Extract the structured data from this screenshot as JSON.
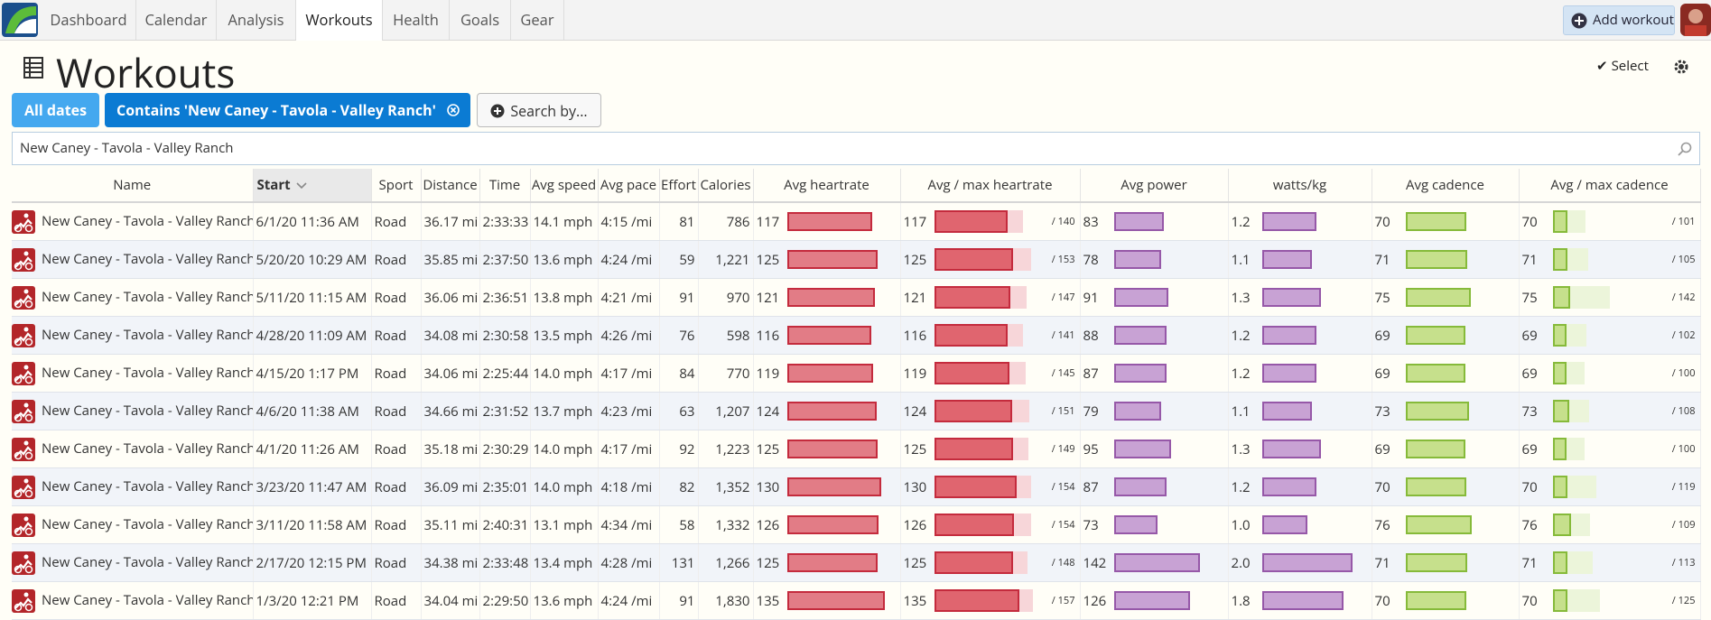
{
  "nav": {
    "tabs": [
      "Dashboard",
      "Calendar",
      "Analysis",
      "Workouts",
      "Health",
      "Goals",
      "Gear"
    ],
    "add_workout": "Add workout"
  },
  "header": {
    "title": "Workouts",
    "select": "Select"
  },
  "filters": {
    "all_dates": "All dates",
    "contains": "Contains 'New Caney - Tavola - Valley Ranch'",
    "search_by": "Search by..."
  },
  "search": {
    "value": "New Caney - Tavola - Valley Ranch"
  },
  "table": {
    "columns": [
      "Name",
      "Start",
      "Sport",
      "Distance",
      "Time",
      "Avg speed",
      "Avg pace",
      "Effort",
      "Calories",
      "Avg heartrate",
      "Avg / max heartrate",
      "Avg power",
      "watts/kg",
      "Avg cadence",
      "Avg / max cadence"
    ],
    "rows": [
      {
        "name": "New Caney - Tavola - Valley Ranch",
        "start": "6/1/20 11:36 AM",
        "sport": "Road",
        "distance": "36.17 mi",
        "time": "2:33:33",
        "avg_speed": "14.1 mph",
        "avg_pace": "4:15 /mi",
        "effort": 81,
        "calories": "786",
        "avg_hr": 117,
        "max_hr": {
          "value": 140,
          "label": "/ 140"
        },
        "avg_power": 83,
        "wkg": 1.2,
        "avg_cadence": 70,
        "max_cadence": {
          "value": 101,
          "label": "/ 101"
        }
      },
      {
        "name": "New Caney - Tavola - Valley Ranch",
        "start": "5/20/20 10:29 AM",
        "sport": "Road",
        "distance": "35.85 mi",
        "time": "2:37:50",
        "avg_speed": "13.6 mph",
        "avg_pace": "4:24 /mi",
        "effort": 59,
        "calories": "1,221",
        "avg_hr": 125,
        "max_hr": {
          "value": 153,
          "label": "/ 153"
        },
        "avg_power": 78,
        "wkg": 1.1,
        "avg_cadence": 71,
        "max_cadence": {
          "value": 105,
          "label": "/ 105"
        }
      },
      {
        "name": "New Caney - Tavola - Valley Ranch",
        "start": "5/11/20 11:15 AM",
        "sport": "Road",
        "distance": "36.06 mi",
        "time": "2:36:51",
        "avg_speed": "13.8 mph",
        "avg_pace": "4:21 /mi",
        "effort": 91,
        "calories": "970",
        "avg_hr": 121,
        "max_hr": {
          "value": 147,
          "label": "/ 147"
        },
        "avg_power": 91,
        "wkg": 1.3,
        "avg_cadence": 75,
        "max_cadence": {
          "value": 142,
          "label": "/ 142"
        }
      },
      {
        "name": "New Caney - Tavola - Valley Ranch",
        "start": "4/28/20 11:09 AM",
        "sport": "Road",
        "distance": "34.08 mi",
        "time": "2:30:58",
        "avg_speed": "13.5 mph",
        "avg_pace": "4:26 /mi",
        "effort": 76,
        "calories": "598",
        "avg_hr": 116,
        "max_hr": {
          "value": 141,
          "label": "/ 141"
        },
        "avg_power": 88,
        "wkg": 1.2,
        "avg_cadence": 69,
        "max_cadence": {
          "value": 102,
          "label": "/ 102"
        }
      },
      {
        "name": "New Caney - Tavola - Valley Ranch",
        "start": "4/15/20 1:17 PM",
        "sport": "Road",
        "distance": "34.06 mi",
        "time": "2:25:44",
        "avg_speed": "14.0 mph",
        "avg_pace": "4:17 /mi",
        "effort": 84,
        "calories": "770",
        "avg_hr": 119,
        "max_hr": {
          "value": 145,
          "label": "/ 145"
        },
        "avg_power": 87,
        "wkg": 1.2,
        "avg_cadence": 69,
        "max_cadence": {
          "value": 100,
          "label": "/ 100"
        }
      },
      {
        "name": "New Caney - Tavola - Valley Ranch",
        "start": "4/6/20 11:38 AM",
        "sport": "Road",
        "distance": "34.66 mi",
        "time": "2:31:52",
        "avg_speed": "13.7 mph",
        "avg_pace": "4:23 /mi",
        "effort": 63,
        "calories": "1,207",
        "avg_hr": 124,
        "max_hr": {
          "value": 151,
          "label": "/ 151"
        },
        "avg_power": 79,
        "wkg": 1.1,
        "avg_cadence": 73,
        "max_cadence": {
          "value": 108,
          "label": "/ 108"
        }
      },
      {
        "name": "New Caney - Tavola - Valley Ranch",
        "start": "4/1/20 11:26 AM",
        "sport": "Road",
        "distance": "35.18 mi",
        "time": "2:30:29",
        "avg_speed": "14.0 mph",
        "avg_pace": "4:17 /mi",
        "effort": 92,
        "calories": "1,223",
        "avg_hr": 125,
        "max_hr": {
          "value": 149,
          "label": "/ 149"
        },
        "avg_power": 95,
        "wkg": 1.3,
        "avg_cadence": 69,
        "max_cadence": {
          "value": 100,
          "label": "/ 100"
        }
      },
      {
        "name": "New Caney - Tavola - Valley Ranch",
        "start": "3/23/20 11:47 AM",
        "sport": "Road",
        "distance": "36.09 mi",
        "time": "2:35:01",
        "avg_speed": "14.0 mph",
        "avg_pace": "4:18 /mi",
        "effort": 82,
        "calories": "1,352",
        "avg_hr": 130,
        "max_hr": {
          "value": 154,
          "label": "/ 154"
        },
        "avg_power": 87,
        "wkg": 1.2,
        "avg_cadence": 70,
        "max_cadence": {
          "value": 119,
          "label": "/ 119"
        }
      },
      {
        "name": "New Caney - Tavola - Valley Ranch",
        "start": "3/11/20 11:58 AM",
        "sport": "Road",
        "distance": "35.11 mi",
        "time": "2:40:31",
        "avg_speed": "13.1 mph",
        "avg_pace": "4:34 /mi",
        "effort": 58,
        "calories": "1,332",
        "avg_hr": 126,
        "max_hr": {
          "value": 154,
          "label": "/ 154"
        },
        "avg_power": 73,
        "wkg": {
          "value": 1.0,
          "label": "1.0"
        },
        "avg_cadence": 76,
        "max_cadence": {
          "value": 109,
          "label": "/ 109"
        }
      },
      {
        "name": "New Caney - Tavola - Valley Ranch",
        "start": "2/17/20 12:15 PM",
        "sport": "Road",
        "distance": "34.38 mi",
        "time": "2:33:48",
        "avg_speed": "13.4 mph",
        "avg_pace": "4:28 /mi",
        "effort": 131,
        "calories": "1,266",
        "avg_hr": 125,
        "max_hr": {
          "value": 148,
          "label": "/ 148"
        },
        "avg_power": 142,
        "wkg": {
          "value": 2.0,
          "label": "2.0"
        },
        "avg_cadence": 71,
        "max_cadence": {
          "value": 113,
          "label": "/ 113"
        }
      },
      {
        "name": "New Caney - Tavola - Valley Ranch",
        "start": "1/3/20 12:21 PM",
        "sport": "Road",
        "distance": "34.04 mi",
        "time": "2:29:50",
        "avg_speed": "13.6 mph",
        "avg_pace": "4:24 /mi",
        "effort": 91,
        "calories": "1,830",
        "avg_hr": 135,
        "max_hr": {
          "value": 157,
          "label": "/ 157"
        },
        "avg_power": 126,
        "wkg": 1.8,
        "avg_cadence": 70,
        "max_cadence": {
          "value": 125,
          "label": "/ 125"
        }
      }
    ]
  }
}
